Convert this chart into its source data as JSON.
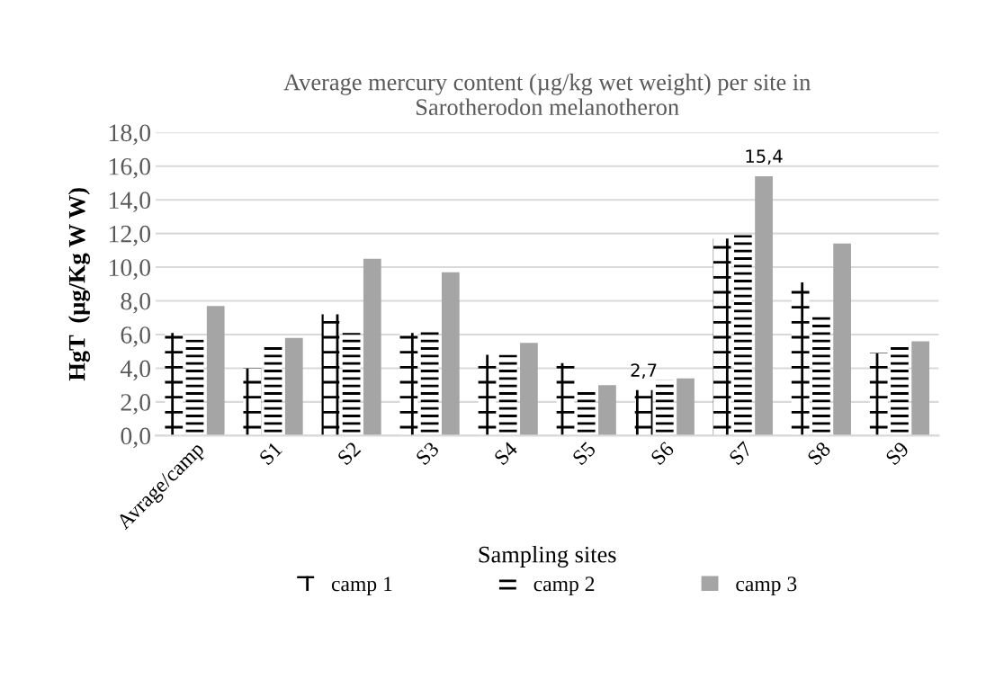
{
  "chart_data": {
    "type": "bar",
    "title": "Average mercury content (µg/kg wet weight) per site in\nSarotherodon melanotheron",
    "xlabel": "Sampling sites",
    "ylabel": "HgT  (µg/Kg W W)",
    "categories": [
      "Avrage/camp",
      "S1",
      "S2",
      "S3",
      "S4",
      "S5",
      "S6",
      "S7",
      "S8",
      "S9"
    ],
    "series": [
      {
        "name": "camp 1",
        "color": "#000000",
        "values": [
          6.1,
          4.0,
          7.2,
          6.1,
          4.8,
          4.3,
          2.7,
          11.7,
          9.1,
          4.9
        ],
        "value_labels": [
          null,
          null,
          null,
          null,
          null,
          null,
          "2,7",
          null,
          null,
          null
        ]
      },
      {
        "name": "camp 2",
        "color": "#000000",
        "values": [
          5.7,
          5.3,
          6.1,
          6.2,
          4.8,
          2.6,
          3.3,
          11.9,
          7.1,
          5.3
        ]
      },
      {
        "name": "camp 3",
        "color": "#a5a5a5",
        "values": [
          7.7,
          5.8,
          10.5,
          9.7,
          5.5,
          3.0,
          3.4,
          15.4,
          11.4,
          5.6
        ],
        "value_labels": [
          null,
          null,
          null,
          null,
          null,
          null,
          null,
          "15,4",
          null,
          null
        ]
      }
    ],
    "ylim": [
      0,
      18
    ],
    "yticks": [
      {
        "value": 0,
        "label": "0,0"
      },
      {
        "value": 2,
        "label": "2,0"
      },
      {
        "value": 4,
        "label": "4,0"
      },
      {
        "value": 6,
        "label": "6,0"
      },
      {
        "value": 8,
        "label": "8,0"
      },
      {
        "value": 10,
        "label": "10,0"
      },
      {
        "value": 12,
        "label": "12,0"
      },
      {
        "value": 14,
        "label": "14,0"
      },
      {
        "value": 16,
        "label": "16,0"
      },
      {
        "value": 18,
        "label": "18,0"
      }
    ],
    "grid": "y",
    "legend": "bottom"
  }
}
